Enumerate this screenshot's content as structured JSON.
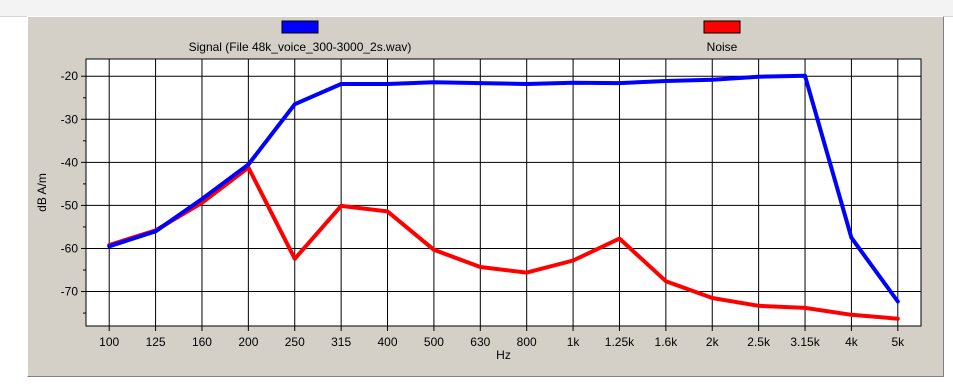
{
  "chart_data": {
    "type": "line",
    "title": "",
    "xlabel": "Hz",
    "ylabel": "dB A/m",
    "categories": [
      "100",
      "125",
      "160",
      "200",
      "250",
      "315",
      "400",
      "500",
      "630",
      "800",
      "1k",
      "1.25k",
      "1.6k",
      "2k",
      "2.5k",
      "3.15k",
      "4k",
      "5k"
    ],
    "yticks": [
      -20,
      -30,
      -40,
      -50,
      -60,
      -70
    ],
    "ylim": [
      -78,
      -16
    ],
    "grid": true,
    "legend_position": "top",
    "series": [
      {
        "name": "Signal (File 48k_voice_300-3000_2s.wav)",
        "color": "#0000ff",
        "values": [
          -59.5,
          -56,
          -48.5,
          -40.5,
          -26.5,
          -21.8,
          -21.8,
          -21.4,
          -21.6,
          -21.8,
          -21.5,
          -21.6,
          -21.1,
          -20.8,
          -20.1,
          -19.9,
          -57.5,
          -72.3
        ]
      },
      {
        "name": "Noise",
        "color": "#ff0000",
        "values": [
          -59.2,
          -55.8,
          -49.4,
          -41.2,
          -62.4,
          -50.1,
          -51.4,
          -60.3,
          -64.3,
          -65.6,
          -62.8,
          -57.7,
          -67.6,
          -71.5,
          -73.3,
          -73.8,
          -75.4,
          -76.3
        ]
      }
    ]
  }
}
